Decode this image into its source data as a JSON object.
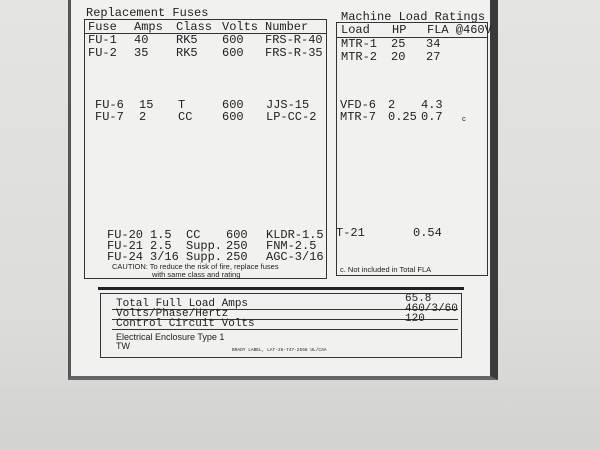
{
  "fuses": {
    "title": "Replacement Fuses",
    "headers": [
      "Fuse",
      "Amps",
      "Class",
      "Volts",
      "Number"
    ],
    "rows": [
      [
        "FU-1",
        "40",
        "RK5",
        "600",
        "FRS-R-40"
      ],
      [
        "FU-2",
        "35",
        "RK5",
        "600",
        "FRS-R-35"
      ],
      [
        "FU-6",
        "15",
        "T",
        "600",
        "JJS-15"
      ],
      [
        "FU-7",
        "2",
        "CC",
        "600",
        "LP-CC-2"
      ],
      [
        "FU-20",
        "1.5",
        "CC",
        "600",
        "KLDR-1.5"
      ],
      [
        "FU-21",
        "2.5",
        "Supp.",
        "250",
        "FNM-2.5"
      ],
      [
        "FU-24",
        "3/16",
        "Supp.",
        "250",
        "AGC-3/16"
      ]
    ],
    "caution_line1": "CAUTION: To reduce the risk of fire, replace fuses",
    "caution_line2": "with same class and rating"
  },
  "loads": {
    "title": "Machine Load Ratings",
    "headers": [
      "Load",
      "HP",
      "FLA @460V"
    ],
    "rows": [
      [
        "MTR-1",
        "25",
        "34",
        ""
      ],
      [
        "MTR-2",
        "20",
        "27",
        ""
      ],
      [
        "VFD-6",
        "2",
        "4.3",
        ""
      ],
      [
        "MTR-7",
        "0.25",
        "0.7",
        "c"
      ],
      [
        "T-21",
        "",
        "0.54",
        ""
      ]
    ],
    "note": "c. Not included in Total FLA"
  },
  "summary": {
    "rows": [
      {
        "label": "Total Full Load Amps",
        "value": "65.8"
      },
      {
        "label": "Volts/Phase/Hertz",
        "value": "460/3/60"
      },
      {
        "label": "Control Circuit Volts",
        "value": "120"
      }
    ],
    "enclosure": "Electrical Enclosure  Type 1",
    "tw": "TW",
    "footer": "BRADY LABEL, LAT-26-747-2558    UL/CSA"
  }
}
